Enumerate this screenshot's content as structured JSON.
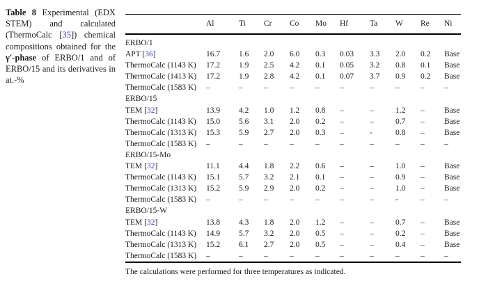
{
  "colors": {
    "text": "#1a1a1a",
    "reference_link": "#3a3ad0",
    "rule": "#000000"
  },
  "caption": {
    "label": "Table 8",
    "seg1": "Experimental (EDX STEM) and calculated (ThermoCalc [",
    "ref35": "35",
    "seg2": "]) chemical compositions obtained for the ",
    "bold_phrase": "γ′-phase",
    "seg3": " of ERBO/1 and of ERBO/15 and its derivatives in at.-%"
  },
  "table": {
    "columns": [
      "Al",
      "Ti",
      "Cr",
      "Co",
      "Mo",
      "Hf",
      "Ta",
      "W",
      "Re",
      "Ni"
    ],
    "rows": [
      {
        "type": "section",
        "label": "ERBO/1"
      },
      {
        "type": "data",
        "label": "APT",
        "ref": "36",
        "cells": [
          "16.7",
          "1.6",
          "2.0",
          "6.0",
          "0.3",
          "0.03",
          "3.3",
          "2.0",
          "0.2",
          "Base"
        ]
      },
      {
        "type": "data",
        "label": "ThermoCalc (1143 K)",
        "cells": [
          "17.2",
          "1.9",
          "2.5",
          "4.2",
          "0.1",
          "0.05",
          "3.2",
          "0.8",
          "0.1",
          "Base"
        ]
      },
      {
        "type": "data",
        "label": "ThermoCalc (1413 K)",
        "cells": [
          "17.2",
          "1.9",
          "2.8",
          "4.2",
          "0.1",
          "0.07",
          "3.7",
          "0.9",
          "0.2",
          "Base"
        ]
      },
      {
        "type": "data",
        "label": "ThermoCalc (1583 K)",
        "cells": [
          "–",
          "–",
          "–",
          "–",
          "–",
          "–",
          "–",
          "–",
          "–",
          "–"
        ]
      },
      {
        "type": "section",
        "label": "ERBO/15"
      },
      {
        "type": "data",
        "label": "TEM",
        "ref": "32",
        "cells": [
          "13.9",
          "4.2",
          "1.0",
          "1.2",
          "0.8",
          "–",
          "–",
          "1.2",
          "–",
          "Base"
        ]
      },
      {
        "type": "data",
        "label": "ThermoCalc (1143 K)",
        "cells": [
          "15.0",
          "5.6",
          "3.1",
          "2.0",
          "0.2",
          "–",
          "–",
          "0.7",
          "–",
          "Base"
        ]
      },
      {
        "type": "data",
        "label": "ThermoCalc (1313 K)",
        "cells": [
          "15.3",
          "5.9",
          "2.7",
          "2.0",
          "0.3",
          "–",
          "-",
          "0.8",
          "–",
          "Base"
        ]
      },
      {
        "type": "data",
        "label": "ThermoCalc (1583 K)",
        "cells": [
          "–",
          "–",
          "–",
          "–",
          "–",
          "–",
          "–",
          "–",
          "–",
          "–"
        ]
      },
      {
        "type": "section",
        "label": "ERBO/15-Mo"
      },
      {
        "type": "data",
        "label": "TEM",
        "ref": "32",
        "cells": [
          "11.1",
          "4.4",
          "1.8",
          "2.2",
          "0.6",
          "–",
          "–",
          "1.0",
          "–",
          "Base"
        ]
      },
      {
        "type": "data",
        "label": "ThermoCalc (1143 K)",
        "cells": [
          "15.1",
          "5.7",
          "3.2",
          "2.1",
          "0.1",
          "–",
          "–",
          "0.9",
          "–",
          "Base"
        ]
      },
      {
        "type": "data",
        "label": "ThermoCalc (1313 K)",
        "cells": [
          "15.2",
          "5.9",
          "2.9",
          "2.0",
          "0.2",
          "–",
          "–",
          "1.0",
          "–",
          "Base"
        ]
      },
      {
        "type": "data",
        "label": "ThermoCalc (1583 K)",
        "cells": [
          "–",
          "–",
          "–",
          "–",
          "–",
          "–",
          "–",
          "-",
          "–",
          "–"
        ]
      },
      {
        "type": "section",
        "label": "ERBO/15-W"
      },
      {
        "type": "data",
        "label": "TEM",
        "ref": "32",
        "cells": [
          "13.8",
          "4.3",
          "1.8",
          "2.0",
          "1.2",
          "–",
          "–",
          "0.7",
          "–",
          "Base"
        ]
      },
      {
        "type": "data",
        "label": "ThermoCalc (1143 K)",
        "cells": [
          "14.9",
          "5.7",
          "3.2",
          "2.0",
          "0.5",
          "–",
          "–",
          "0.2",
          "–",
          "Base"
        ]
      },
      {
        "type": "data",
        "label": "ThermoCalc (1313 K)",
        "cells": [
          "15.2",
          "6.1",
          "2.7",
          "2.0",
          "0.5",
          "–",
          "–",
          "0.4",
          "–",
          "Base"
        ]
      },
      {
        "type": "data",
        "label": "ThermoCalc (1583 K)",
        "cells": [
          "–",
          "–",
          "–",
          "–",
          "–",
          "–",
          "–",
          "–",
          "–",
          "–"
        ]
      }
    ],
    "footnote": "The calculations were performed for three temperatures as indicated."
  }
}
